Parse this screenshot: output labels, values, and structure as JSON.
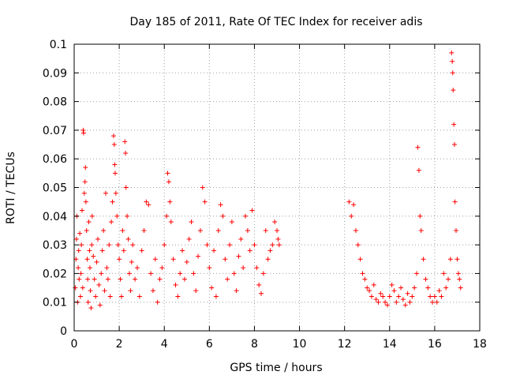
{
  "chart_data": {
    "type": "scatter",
    "title": "Day 185 of 2011, Rate Of TEC Index for receiver adis",
    "xlabel": "GPS time / hours",
    "ylabel": "ROTI / TECUs",
    "xlim": [
      0,
      18
    ],
    "ylim": [
      0,
      0.1
    ],
    "x_ticks": [
      0,
      2,
      4,
      6,
      8,
      10,
      12,
      14,
      16,
      18
    ],
    "x_tick_labels": [
      "0",
      "2",
      "4",
      "6",
      "8",
      "10",
      "12",
      "14",
      "16",
      "18"
    ],
    "y_ticks": [
      0,
      0.01,
      0.02,
      0.03,
      0.04,
      0.05,
      0.06,
      0.07,
      0.08,
      0.09,
      0.1
    ],
    "y_tick_labels": [
      "0",
      "0.01",
      "0.02",
      "0.03",
      "0.04",
      "0.05",
      "0.06",
      "0.07",
      "0.08",
      "0.09",
      "0.1"
    ],
    "grid": true,
    "marker": "+",
    "color": "#ff0000",
    "series": [
      {
        "name": "ROTI",
        "points": [
          [
            0.05,
            0.015
          ],
          [
            0.08,
            0.025
          ],
          [
            0.1,
            0.032
          ],
          [
            0.12,
            0.04
          ],
          [
            0.15,
            0.01
          ],
          [
            0.18,
            0.022
          ],
          [
            0.2,
            0.028
          ],
          [
            0.22,
            0.018
          ],
          [
            0.25,
            0.034
          ],
          [
            0.28,
            0.012
          ],
          [
            0.3,
            0.02
          ],
          [
            0.32,
            0.03
          ],
          [
            0.35,
            0.042
          ],
          [
            0.38,
            0.015
          ],
          [
            0.4,
            0.07
          ],
          [
            0.42,
            0.069
          ],
          [
            0.45,
            0.048
          ],
          [
            0.48,
            0.052
          ],
          [
            0.5,
            0.057
          ],
          [
            0.52,
            0.045
          ],
          [
            0.55,
            0.035
          ],
          [
            0.58,
            0.025
          ],
          [
            0.6,
            0.018
          ],
          [
            0.62,
            0.01
          ],
          [
            0.65,
            0.038
          ],
          [
            0.68,
            0.028
          ],
          [
            0.7,
            0.022
          ],
          [
            0.72,
            0.014
          ],
          [
            0.75,
            0.008
          ],
          [
            0.78,
            0.03
          ],
          [
            0.8,
            0.04
          ],
          [
            0.85,
            0.026
          ],
          [
            0.9,
            0.018
          ],
          [
            0.95,
            0.012
          ],
          [
            1.0,
            0.024
          ],
          [
            1.05,
            0.032
          ],
          [
            1.1,
            0.016
          ],
          [
            1.15,
            0.009
          ],
          [
            1.2,
            0.02
          ],
          [
            1.25,
            0.028
          ],
          [
            1.3,
            0.035
          ],
          [
            1.35,
            0.014
          ],
          [
            1.4,
            0.048
          ],
          [
            1.45,
            0.022
          ],
          [
            1.5,
            0.018
          ],
          [
            1.55,
            0.03
          ],
          [
            1.6,
            0.012
          ],
          [
            1.65,
            0.038
          ],
          [
            1.7,
            0.045
          ],
          [
            1.75,
            0.068
          ],
          [
            1.78,
            0.065
          ],
          [
            1.8,
            0.058
          ],
          [
            1.82,
            0.055
          ],
          [
            1.85,
            0.048
          ],
          [
            1.9,
            0.04
          ],
          [
            1.95,
            0.03
          ],
          [
            2.0,
            0.025
          ],
          [
            2.05,
            0.018
          ],
          [
            2.1,
            0.012
          ],
          [
            2.15,
            0.035
          ],
          [
            2.2,
            0.028
          ],
          [
            2.25,
            0.066
          ],
          [
            2.28,
            0.062
          ],
          [
            2.3,
            0.05
          ],
          [
            2.35,
            0.04
          ],
          [
            2.4,
            0.032
          ],
          [
            2.45,
            0.02
          ],
          [
            2.5,
            0.014
          ],
          [
            2.55,
            0.024
          ],
          [
            2.6,
            0.03
          ],
          [
            2.7,
            0.018
          ],
          [
            2.8,
            0.022
          ],
          [
            2.9,
            0.012
          ],
          [
            3.0,
            0.028
          ],
          [
            3.1,
            0.035
          ],
          [
            3.2,
            0.045
          ],
          [
            3.3,
            0.044
          ],
          [
            3.4,
            0.02
          ],
          [
            3.5,
            0.014
          ],
          [
            3.6,
            0.025
          ],
          [
            3.7,
            0.01
          ],
          [
            3.8,
            0.018
          ],
          [
            3.9,
            0.022
          ],
          [
            4.0,
            0.03
          ],
          [
            4.1,
            0.04
          ],
          [
            4.15,
            0.055
          ],
          [
            4.2,
            0.052
          ],
          [
            4.25,
            0.045
          ],
          [
            4.3,
            0.038
          ],
          [
            4.4,
            0.025
          ],
          [
            4.5,
            0.016
          ],
          [
            4.6,
            0.012
          ],
          [
            4.7,
            0.02
          ],
          [
            4.8,
            0.028
          ],
          [
            4.9,
            0.018
          ],
          [
            5.0,
            0.024
          ],
          [
            5.1,
            0.032
          ],
          [
            5.2,
            0.038
          ],
          [
            5.3,
            0.02
          ],
          [
            5.4,
            0.014
          ],
          [
            5.5,
            0.026
          ],
          [
            5.6,
            0.035
          ],
          [
            5.7,
            0.05
          ],
          [
            5.8,
            0.045
          ],
          [
            5.9,
            0.03
          ],
          [
            6.0,
            0.022
          ],
          [
            6.1,
            0.015
          ],
          [
            6.2,
            0.028
          ],
          [
            6.3,
            0.012
          ],
          [
            6.4,
            0.035
          ],
          [
            6.5,
            0.044
          ],
          [
            6.6,
            0.04
          ],
          [
            6.7,
            0.025
          ],
          [
            6.8,
            0.018
          ],
          [
            6.9,
            0.03
          ],
          [
            7.0,
            0.038
          ],
          [
            7.1,
            0.02
          ],
          [
            7.2,
            0.014
          ],
          [
            7.3,
            0.026
          ],
          [
            7.4,
            0.032
          ],
          [
            7.5,
            0.022
          ],
          [
            7.6,
            0.04
          ],
          [
            7.7,
            0.035
          ],
          [
            7.8,
            0.028
          ],
          [
            7.9,
            0.042
          ],
          [
            8.0,
            0.03
          ],
          [
            8.1,
            0.022
          ],
          [
            8.2,
            0.016
          ],
          [
            8.3,
            0.013
          ],
          [
            8.4,
            0.02
          ],
          [
            8.5,
            0.035
          ],
          [
            8.6,
            0.025
          ],
          [
            8.7,
            0.028
          ],
          [
            8.8,
            0.03
          ],
          [
            8.9,
            0.038
          ],
          [
            9.0,
            0.035
          ],
          [
            9.05,
            0.032
          ],
          [
            9.1,
            0.03
          ],
          [
            12.2,
            0.045
          ],
          [
            12.3,
            0.04
          ],
          [
            12.4,
            0.044
          ],
          [
            12.5,
            0.035
          ],
          [
            12.6,
            0.03
          ],
          [
            12.7,
            0.025
          ],
          [
            12.8,
            0.02
          ],
          [
            12.9,
            0.018
          ],
          [
            13.0,
            0.015
          ],
          [
            13.1,
            0.014
          ],
          [
            13.2,
            0.012
          ],
          [
            13.3,
            0.016
          ],
          [
            13.4,
            0.011
          ],
          [
            13.5,
            0.01
          ],
          [
            13.6,
            0.013
          ],
          [
            13.7,
            0.012
          ],
          [
            13.8,
            0.01
          ],
          [
            13.9,
            0.009
          ],
          [
            14.0,
            0.012
          ],
          [
            14.1,
            0.016
          ],
          [
            14.2,
            0.014
          ],
          [
            14.3,
            0.01
          ],
          [
            14.4,
            0.012
          ],
          [
            14.5,
            0.015
          ],
          [
            14.6,
            0.011
          ],
          [
            14.7,
            0.009
          ],
          [
            14.8,
            0.013
          ],
          [
            14.9,
            0.01
          ],
          [
            15.0,
            0.012
          ],
          [
            15.1,
            0.015
          ],
          [
            15.2,
            0.02
          ],
          [
            15.25,
            0.064
          ],
          [
            15.3,
            0.056
          ],
          [
            15.35,
            0.04
          ],
          [
            15.4,
            0.035
          ],
          [
            15.5,
            0.025
          ],
          [
            15.6,
            0.018
          ],
          [
            15.7,
            0.015
          ],
          [
            15.8,
            0.012
          ],
          [
            15.9,
            0.01
          ],
          [
            16.0,
            0.012
          ],
          [
            16.1,
            0.01
          ],
          [
            16.2,
            0.014
          ],
          [
            16.3,
            0.012
          ],
          [
            16.4,
            0.02
          ],
          [
            16.5,
            0.015
          ],
          [
            16.6,
            0.018
          ],
          [
            16.7,
            0.025
          ],
          [
            16.75,
            0.097
          ],
          [
            16.78,
            0.094
          ],
          [
            16.8,
            0.09
          ],
          [
            16.82,
            0.084
          ],
          [
            16.85,
            0.072
          ],
          [
            16.88,
            0.065
          ],
          [
            16.9,
            0.045
          ],
          [
            16.95,
            0.035
          ],
          [
            17.0,
            0.025
          ],
          [
            17.05,
            0.02
          ],
          [
            17.1,
            0.018
          ],
          [
            17.15,
            0.015
          ]
        ]
      }
    ]
  }
}
